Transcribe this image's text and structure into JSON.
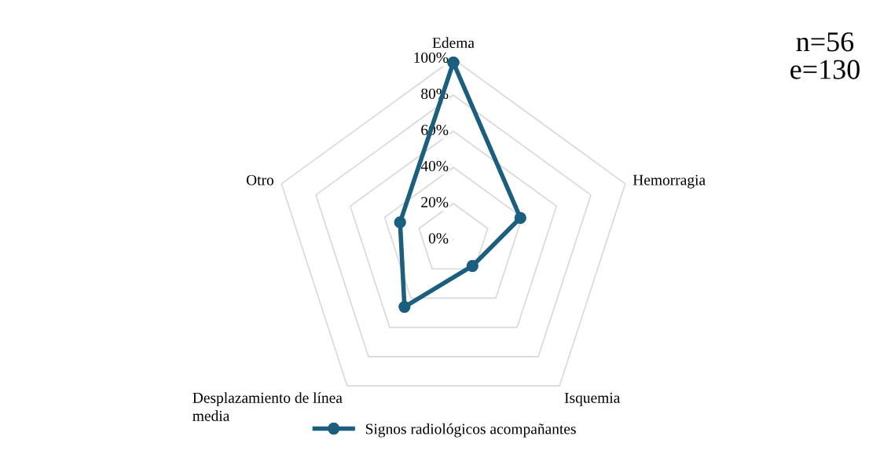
{
  "chart_data": {
    "type": "radar",
    "categories": [
      "Edema",
      "Hemorragia",
      "Isquemia",
      "Desplazamiento de línea\nmedia",
      "Otro"
    ],
    "series": [
      {
        "name": "Signos radiológicos acompañantes",
        "color": "#1b5e7f",
        "values": [
          98,
          39,
          18,
          46,
          31
        ]
      }
    ],
    "ylim": [
      0,
      100
    ],
    "yticks": [
      {
        "value": 0,
        "label": "0%"
      },
      {
        "value": 20,
        "label": "20%"
      },
      {
        "value": 40,
        "label": "40%"
      },
      {
        "value": 60,
        "label": "60%"
      },
      {
        "value": 80,
        "label": "80%"
      },
      {
        "value": 100,
        "label": "100%"
      }
    ],
    "grid": true,
    "marker": "circle",
    "legend": "bottom",
    "annotations": [
      "n=56\ne=130"
    ]
  }
}
